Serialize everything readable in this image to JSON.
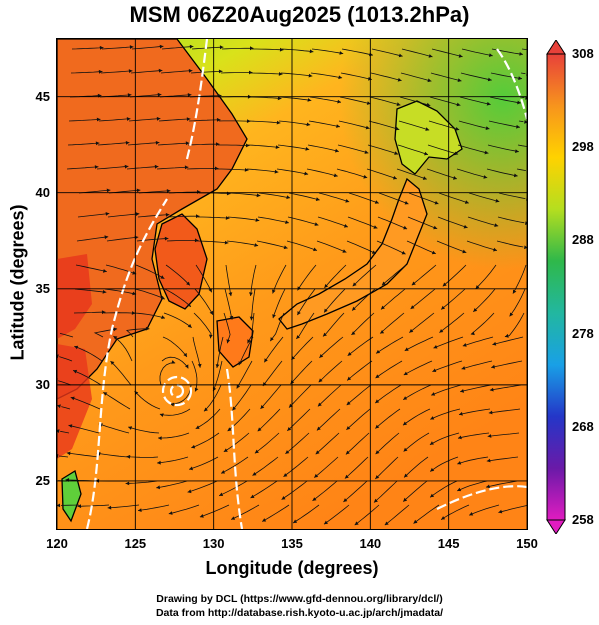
{
  "title": "MSM 06Z20Aug2025 (1013.2hPa)",
  "map": {
    "lon_range": [
      120,
      150
    ],
    "lat_range": [
      22.5,
      48
    ],
    "xlabel": "Longitude (degrees)",
    "ylabel": "Latitude  (degrees)",
    "x_ticks": [
      "120",
      "125",
      "130",
      "135",
      "140",
      "145",
      "150"
    ],
    "y_ticks": [
      "45",
      "40",
      "35",
      "30",
      "25"
    ],
    "grid": true,
    "field": "temperature with streamlines",
    "colors": {
      "ocean_warm": "#ff8c1a",
      "ocean_mid": "#ffb21f",
      "north_cool": "#a8dc20",
      "land_hot": "#e83a1e",
      "coast": "#000000",
      "contour": "#ffffff"
    }
  },
  "colorbar": {
    "labels": [
      "308",
      "298",
      "288",
      "278",
      "268",
      "258"
    ],
    "colors": [
      "#e8413a",
      "#f7941d",
      "#ffd200",
      "#b5de1f",
      "#2fb84a",
      "#22b7a0",
      "#19a0e6",
      "#2436c8",
      "#6a1aa8",
      "#e01cc0"
    ]
  },
  "credits": {
    "line1": "Drawing by DCL (https://www.gfd-dennou.org/library/dcl/)",
    "line2": "Data from http://database.rish.kyoto-u.ac.jp/arch/jmadata/"
  }
}
